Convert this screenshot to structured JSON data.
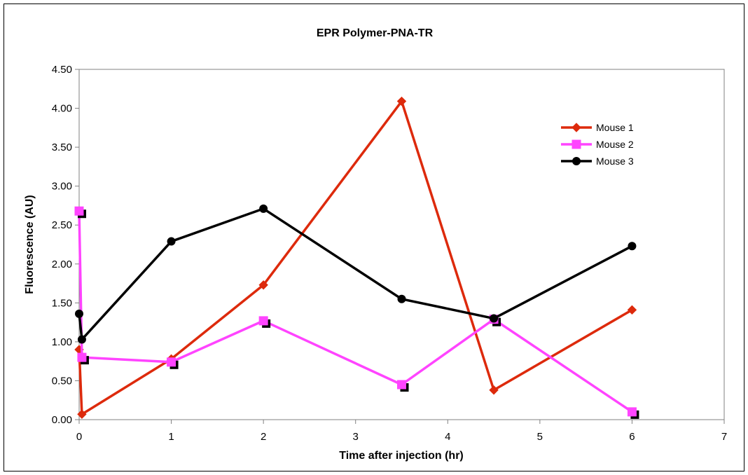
{
  "chart_data": {
    "type": "line",
    "title": "EPR Polymer-PNA-TR",
    "xlabel": "Time after injection (hr)",
    "ylabel": "Fluorescence (AU)",
    "xlim": [
      0,
      7
    ],
    "ylim": [
      0,
      4.5
    ],
    "x_ticks": [
      "0",
      "1",
      "2",
      "3",
      "4",
      "5",
      "6",
      "7"
    ],
    "y_ticks": [
      "0.00",
      "0.50",
      "1.00",
      "1.50",
      "2.00",
      "2.50",
      "3.00",
      "3.50",
      "4.00",
      "4.50"
    ],
    "grid": false,
    "legend_position": "top-right",
    "series": [
      {
        "name": "Mouse 1",
        "color": "#dd2a0c",
        "marker": "diamond",
        "x": [
          0,
          0.03,
          1,
          2,
          3.5,
          4.5,
          6
        ],
        "y": [
          0.9,
          0.07,
          0.78,
          1.73,
          4.09,
          0.38,
          1.41
        ]
      },
      {
        "name": "Mouse 2",
        "color": "#ff44ff",
        "marker": "square",
        "x": [
          0,
          0.03,
          1,
          2,
          3.5,
          4.5,
          6
        ],
        "y": [
          2.68,
          0.8,
          0.74,
          1.27,
          0.45,
          1.29,
          0.1
        ]
      },
      {
        "name": "Mouse 3",
        "color": "#000000",
        "marker": "circle",
        "x": [
          0,
          0.03,
          1,
          2,
          3.5,
          4.5,
          6
        ],
        "y": [
          1.36,
          1.03,
          2.29,
          2.71,
          1.55,
          1.3,
          2.23
        ]
      }
    ]
  }
}
